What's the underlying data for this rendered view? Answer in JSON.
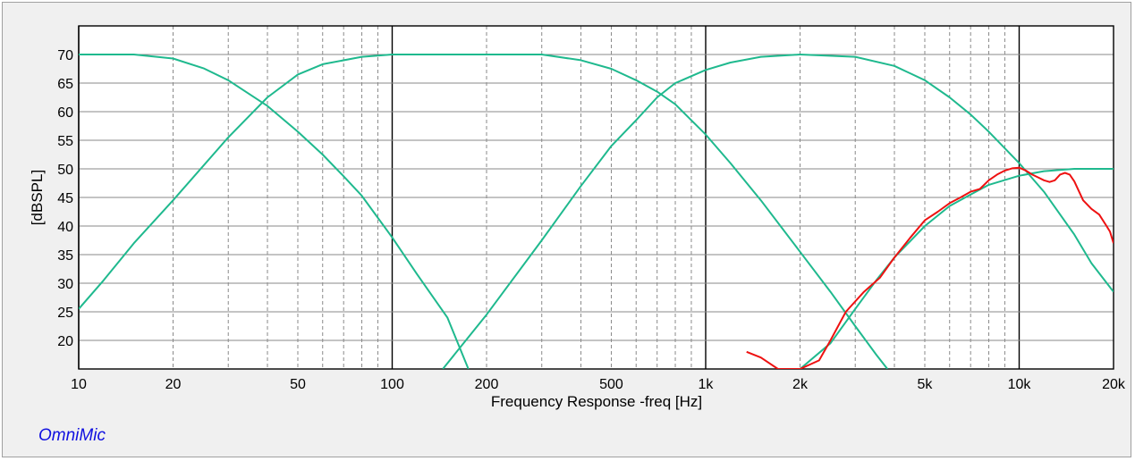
{
  "app": {
    "name": "OmniMic"
  },
  "colors": {
    "filter": "#1fb98e",
    "measured": "#ee1111",
    "plot_bg": "#ffffff",
    "frame_bg": "#f0f0f0"
  },
  "chart_data": {
    "type": "line",
    "title": "",
    "xlabel": "Frequency Response -freq [Hz]",
    "ylabel": "[dBSPL]",
    "xscale": "log",
    "xlim": [
      10,
      20000
    ],
    "ylim": [
      15,
      75
    ],
    "grid": true,
    "xticks": [
      {
        "value": 10,
        "label": "10"
      },
      {
        "value": 20,
        "label": "20"
      },
      {
        "value": 50,
        "label": "50"
      },
      {
        "value": 100,
        "label": "100"
      },
      {
        "value": 200,
        "label": "200"
      },
      {
        "value": 500,
        "label": "500"
      },
      {
        "value": 1000,
        "label": "1k"
      },
      {
        "value": 2000,
        "label": "2k"
      },
      {
        "value": 5000,
        "label": "5k"
      },
      {
        "value": 10000,
        "label": "10k"
      },
      {
        "value": 20000,
        "label": "20k"
      }
    ],
    "yticks": [
      20,
      25,
      30,
      35,
      40,
      45,
      50,
      55,
      60,
      65,
      70
    ],
    "series": [
      {
        "color": "#1fb98e",
        "points": [
          [
            10,
            70
          ],
          [
            15,
            70
          ],
          [
            20,
            69.3
          ],
          [
            25,
            67.6
          ],
          [
            30,
            65.5
          ],
          [
            40,
            61
          ],
          [
            50,
            56.5
          ],
          [
            60,
            52.5
          ],
          [
            70,
            48.7
          ],
          [
            80,
            45.3
          ],
          [
            100,
            38
          ],
          [
            120,
            31.6
          ],
          [
            150,
            24
          ],
          [
            175,
            15
          ]
        ]
      },
      {
        "color": "#1fb98e",
        "points": [
          [
            10,
            25.5
          ],
          [
            12,
            30.5
          ],
          [
            15,
            37
          ],
          [
            20,
            44.5
          ],
          [
            30,
            55.5
          ],
          [
            40,
            62.5
          ],
          [
            50,
            66.5
          ],
          [
            60,
            68.3
          ],
          [
            80,
            69.6
          ],
          [
            100,
            70
          ]
        ]
      },
      {
        "color": "#1fb98e",
        "points": [
          [
            100,
            70
          ],
          [
            300,
            70
          ],
          [
            400,
            69
          ],
          [
            500,
            67.5
          ],
          [
            600,
            65.5
          ],
          [
            700,
            63.5
          ],
          [
            800,
            61.3
          ],
          [
            1000,
            56
          ],
          [
            1200,
            51
          ],
          [
            1500,
            44.5
          ],
          [
            2000,
            35.5
          ],
          [
            2500,
            28.5
          ],
          [
            3000,
            22.5
          ],
          [
            3500,
            17.5
          ],
          [
            3800,
            15
          ]
        ]
      },
      {
        "color": "#1fb98e",
        "points": [
          [
            145,
            15
          ],
          [
            200,
            24.5
          ],
          [
            300,
            37.5
          ],
          [
            400,
            47
          ],
          [
            500,
            54
          ],
          [
            600,
            58.5
          ],
          [
            700,
            62.5
          ],
          [
            800,
            65
          ],
          [
            1000,
            67.3
          ],
          [
            1200,
            68.6
          ],
          [
            1500,
            69.6
          ],
          [
            2000,
            70
          ]
        ]
      },
      {
        "color": "#1fb98e",
        "points": [
          [
            2000,
            70
          ],
          [
            3000,
            69.6
          ],
          [
            4000,
            68
          ],
          [
            5000,
            65.5
          ],
          [
            6000,
            62.5
          ],
          [
            7000,
            59.5
          ],
          [
            8000,
            56.5
          ],
          [
            10000,
            51
          ],
          [
            12000,
            46
          ],
          [
            15000,
            38.5
          ],
          [
            17000,
            33.5
          ],
          [
            20000,
            28.5
          ]
        ]
      },
      {
        "color": "#1fb98e",
        "points": [
          [
            2000,
            15
          ],
          [
            2500,
            19.5
          ],
          [
            3000,
            25.5
          ],
          [
            3500,
            30.5
          ],
          [
            4000,
            34.5
          ],
          [
            5000,
            40
          ],
          [
            6000,
            43.5
          ],
          [
            7000,
            45.5
          ],
          [
            8000,
            47.2
          ],
          [
            10000,
            48.8
          ],
          [
            12000,
            49.6
          ],
          [
            15000,
            50
          ],
          [
            20000,
            50
          ]
        ]
      },
      {
        "color": "#ee1111",
        "points": [
          [
            1350,
            18
          ],
          [
            1500,
            17
          ],
          [
            1700,
            15
          ],
          [
            2000,
            15
          ],
          [
            2300,
            16.5
          ],
          [
            2500,
            20
          ],
          [
            2800,
            25
          ],
          [
            3200,
            28.5
          ],
          [
            3600,
            31
          ],
          [
            4000,
            34.5
          ],
          [
            4500,
            38
          ],
          [
            5000,
            41
          ],
          [
            5500,
            42.5
          ],
          [
            6000,
            44
          ],
          [
            6500,
            45
          ],
          [
            7000,
            46
          ],
          [
            7500,
            46.5
          ],
          [
            8000,
            48
          ],
          [
            8500,
            49
          ],
          [
            9000,
            49.7
          ],
          [
            9500,
            50.1
          ],
          [
            10000,
            50.2
          ],
          [
            10500,
            49.7
          ],
          [
            11000,
            49
          ],
          [
            11500,
            48.5
          ],
          [
            12000,
            48
          ],
          [
            12500,
            47.7
          ],
          [
            13000,
            48
          ],
          [
            13500,
            49
          ],
          [
            14000,
            49.3
          ],
          [
            14500,
            49
          ],
          [
            15000,
            47.8
          ],
          [
            16000,
            44.5
          ],
          [
            17000,
            43
          ],
          [
            18000,
            42
          ],
          [
            19000,
            40
          ],
          [
            19500,
            39
          ],
          [
            20000,
            37
          ]
        ]
      }
    ]
  }
}
